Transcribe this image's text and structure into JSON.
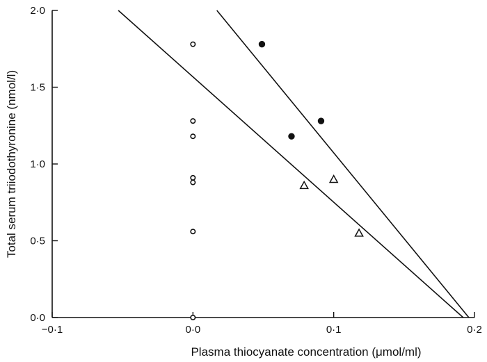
{
  "chart_data": {
    "type": "scatter",
    "xlabel": "Plasma thiocyanate concentration (μmol/ml)",
    "ylabel": "Total serum triiodothyronine (nmol/l)",
    "xlim": [
      -0.1,
      0.2
    ],
    "ylim": [
      0.0,
      2.0
    ],
    "x_ticks": [
      -0.1,
      0.0,
      0.1,
      0.2
    ],
    "x_tick_labels": [
      "−0·1",
      "0·0",
      "0·1",
      "0·2"
    ],
    "y_ticks": [
      0.0,
      0.5,
      1.0,
      1.5,
      2.0
    ],
    "y_tick_labels": [
      "0·0",
      "0·5",
      "1·0",
      "1·5",
      "2·0"
    ],
    "grid": false,
    "series": [
      {
        "marker": "open-circle",
        "points": [
          {
            "x": 0.0,
            "y": 1.78
          },
          {
            "x": 0.0,
            "y": 1.28
          },
          {
            "x": 0.0,
            "y": 1.18
          },
          {
            "x": 0.0,
            "y": 0.91
          },
          {
            "x": 0.0,
            "y": 0.88
          },
          {
            "x": 0.0,
            "y": 0.56
          },
          {
            "x": 0.0,
            "y": 0.0
          }
        ]
      },
      {
        "marker": "filled-circle",
        "points": [
          {
            "x": 0.049,
            "y": 1.78
          },
          {
            "x": 0.07,
            "y": 1.18
          },
          {
            "x": 0.091,
            "y": 1.28
          }
        ]
      },
      {
        "marker": "open-triangle",
        "points": [
          {
            "x": 0.079,
            "y": 0.86
          },
          {
            "x": 0.1,
            "y": 0.9
          },
          {
            "x": 0.118,
            "y": 0.55
          }
        ]
      }
    ],
    "fit_lines": [
      {
        "x1": -0.053,
        "y1": 2.0,
        "x2": 0.192,
        "y2": 0.0
      },
      {
        "x1": 0.017,
        "y1": 2.0,
        "x2": 0.196,
        "y2": 0.0
      }
    ]
  }
}
